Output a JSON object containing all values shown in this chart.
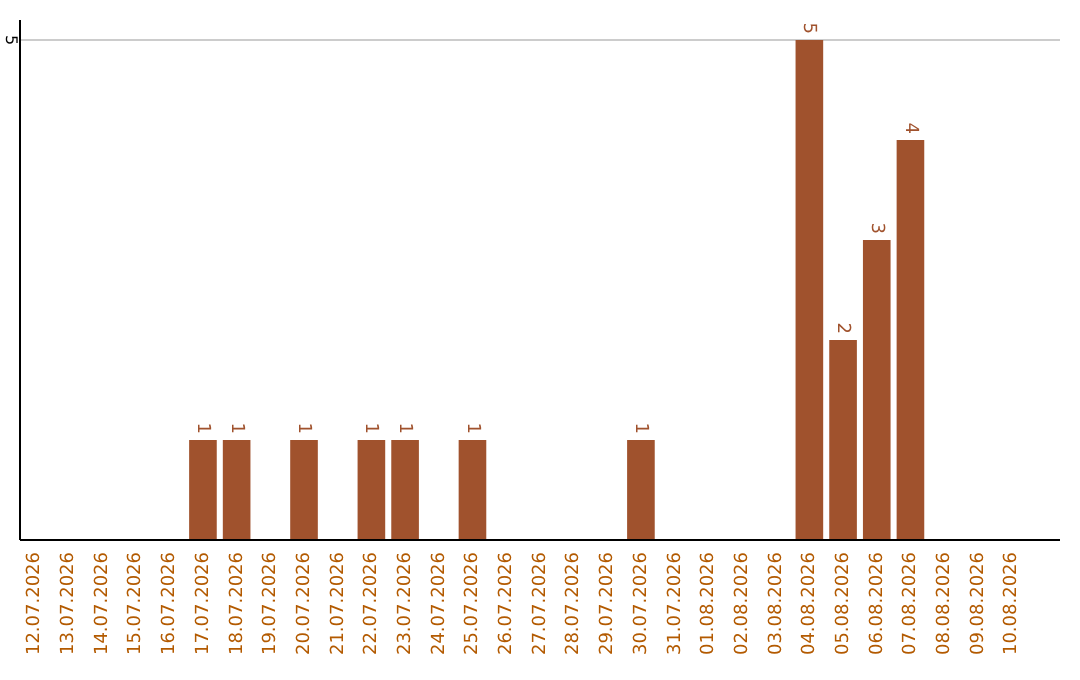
{
  "chart_data": {
    "type": "bar",
    "categories": [
      "12.07.2026",
      "13.07.2026",
      "14.07.2026",
      "15.07.2026",
      "16.07.2026",
      "17.07.2026",
      "18.07.2026",
      "19.07.2026",
      "20.07.2026",
      "21.07.2026",
      "22.07.2026",
      "23.07.2026",
      "24.07.2026",
      "25.07.2026",
      "26.07.2026",
      "27.07.2026",
      "28.07.2026",
      "29.07.2026",
      "30.07.2026",
      "31.07.2026",
      "01.08.2026",
      "02.08.2026",
      "03.08.2026",
      "04.08.2026",
      "05.08.2026",
      "06.08.2026",
      "07.08.2026",
      "08.08.2026",
      "09.08.2026",
      "10.08.2026"
    ],
    "values": [
      0,
      0,
      0,
      0,
      0,
      1,
      1,
      0,
      1,
      0,
      1,
      1,
      0,
      1,
      0,
      0,
      0,
      0,
      1,
      0,
      0,
      0,
      0,
      5,
      2,
      3,
      4,
      0,
      0,
      0
    ],
    "value_labels": [
      null,
      null,
      null,
      null,
      null,
      "1",
      "1",
      null,
      "1",
      null,
      "1",
      "1",
      null,
      "1",
      null,
      null,
      null,
      null,
      "1",
      null,
      null,
      null,
      null,
      "5",
      "2",
      "3",
      "4",
      null,
      null,
      null
    ],
    "color": "#a0522d",
    "ylim": [
      0,
      5.2
    ],
    "yticks": [
      5
    ],
    "grid": "y"
  }
}
